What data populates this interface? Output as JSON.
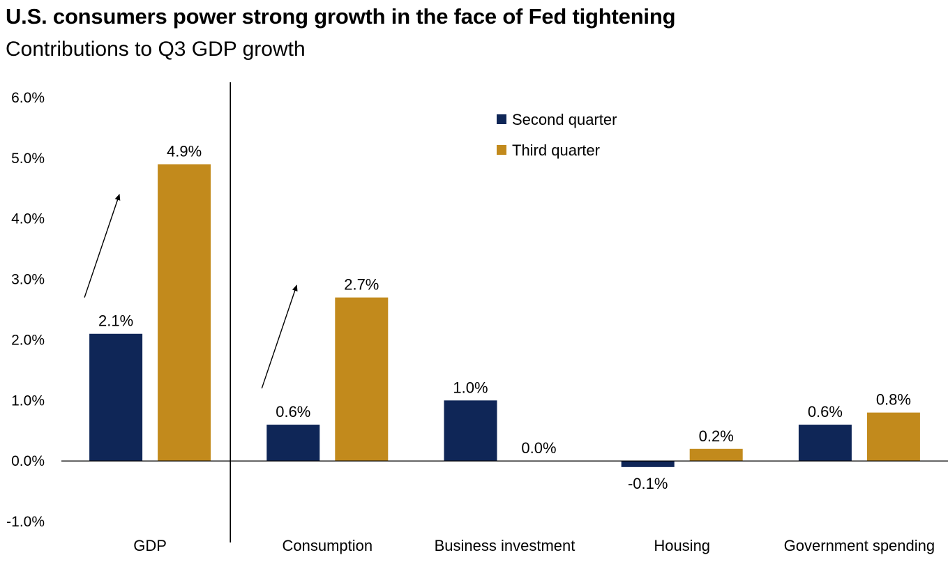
{
  "title": "U.S. consumers power strong growth in the face of Fed tightening",
  "subtitle": "Contributions to Q3 GDP growth",
  "colors": {
    "second_quarter": "#0f2657",
    "third_quarter": "#c28a1c",
    "axis": "#000000"
  },
  "chart_data": {
    "type": "bar",
    "categories": [
      "GDP",
      "Consumption",
      "Business investment",
      "Housing",
      "Government spending"
    ],
    "series": [
      {
        "name": "Second quarter",
        "values": [
          2.1,
          0.6,
          1.0,
          -0.1,
          0.6
        ],
        "labels": [
          "2.1%",
          "0.6%",
          "1.0%",
          "-0.1%",
          "0.6%"
        ]
      },
      {
        "name": "Third quarter",
        "values": [
          4.9,
          2.7,
          0.0,
          0.2,
          0.8
        ],
        "labels": [
          "4.9%",
          "2.7%",
          "0.0%",
          "0.2%",
          "0.8%"
        ]
      }
    ],
    "ylim": [
      -1.0,
      6.0
    ],
    "yticks": [
      -1.0,
      0.0,
      1.0,
      2.0,
      3.0,
      4.0,
      5.0,
      6.0
    ],
    "ytick_labels": [
      "-1.0%",
      "0.0%",
      "1.0%",
      "2.0%",
      "3.0%",
      "4.0%",
      "5.0%",
      "6.0%"
    ],
    "legend_placement": "top-center",
    "grid": false,
    "annotations": [
      {
        "type": "arrow",
        "category": "GDP",
        "meaning": "increase from second to third quarter"
      },
      {
        "type": "arrow",
        "category": "Consumption",
        "meaning": "increase from second to third quarter"
      },
      {
        "type": "divider",
        "after_category": "GDP"
      }
    ]
  }
}
